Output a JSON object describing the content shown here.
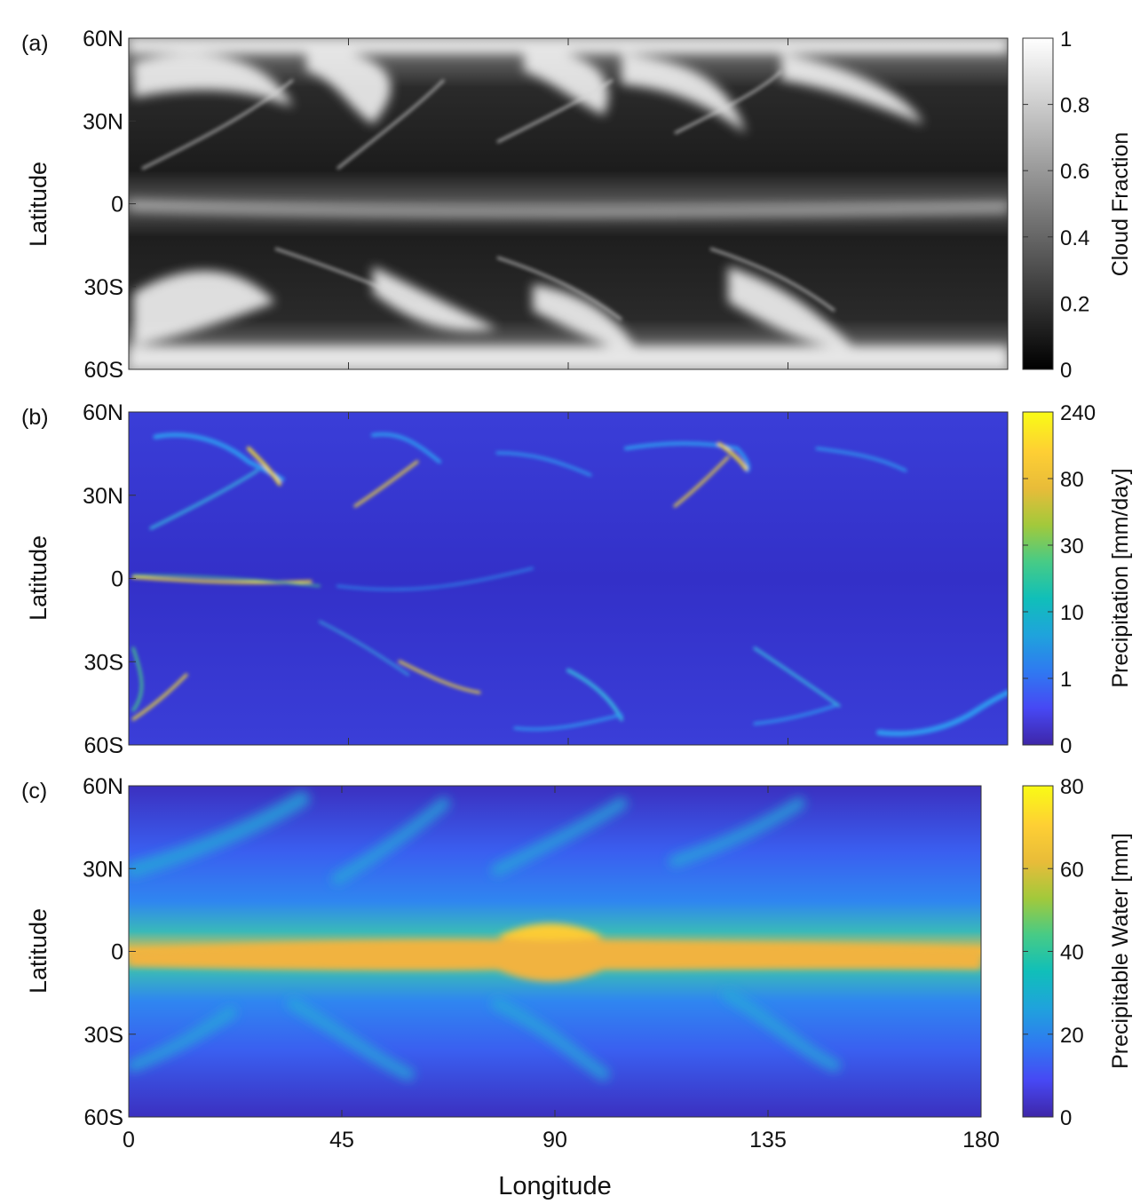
{
  "chart_data": [
    {
      "type": "heatmap",
      "panel_label": "(a)",
      "xlabel": "",
      "ylabel": "Latitude",
      "xlim": [
        0,
        180
      ],
      "ylim": [
        -60,
        60
      ],
      "x_ticks": [
        "0",
        "45",
        "90",
        "135",
        "180"
      ],
      "y_ticks": [
        "60N",
        "30N",
        "0",
        "30S",
        "60S"
      ],
      "colorbar": {
        "label": "Cloud Fraction",
        "colormap": "gray",
        "colors": [
          "#000000",
          "#ffffff"
        ],
        "range": [
          0,
          1
        ],
        "ticks": [
          "0",
          "0.2",
          "0.4",
          "0.6",
          "0.8",
          "1"
        ]
      }
    },
    {
      "type": "heatmap",
      "panel_label": "(b)",
      "xlabel": "",
      "ylabel": "Latitude",
      "xlim": [
        0,
        180
      ],
      "ylim": [
        -60,
        60
      ],
      "x_ticks": [
        "0",
        "45",
        "90",
        "135",
        "180"
      ],
      "y_ticks": [
        "60N",
        "30N",
        "0",
        "30S",
        "60S"
      ],
      "colorbar": {
        "label": "Precipitation [mm/day]",
        "colormap": "parula",
        "colors": [
          "#3e26a8",
          "#4748f4",
          "#2f79f1",
          "#1fa3dc",
          "#10bfb9",
          "#47cb86",
          "#a2c93b",
          "#e8bc39",
          "#fecf34",
          "#f9fb15"
        ],
        "scale": "nonlinear",
        "ticks": [
          "0",
          "1",
          "10",
          "30",
          "80",
          "240"
        ]
      }
    },
    {
      "type": "heatmap",
      "panel_label": "(c)",
      "xlabel": "Longitude",
      "ylabel": "Latitude",
      "xlim": [
        0,
        180
      ],
      "ylim": [
        -60,
        60
      ],
      "x_ticks": [
        "0",
        "45",
        "90",
        "135",
        "180"
      ],
      "y_ticks": [
        "60N",
        "30N",
        "0",
        "30S",
        "60S"
      ],
      "colorbar": {
        "label": "Precipitable Water [mm]",
        "colormap": "parula",
        "colors": [
          "#3e26a8",
          "#4748f4",
          "#2f79f1",
          "#1fa3dc",
          "#10bfb9",
          "#47cb86",
          "#a2c93b",
          "#e8bc39",
          "#fecf34",
          "#f9fb15"
        ],
        "range": [
          0,
          80
        ],
        "ticks": [
          "0",
          "20",
          "40",
          "60",
          "80"
        ]
      }
    }
  ]
}
